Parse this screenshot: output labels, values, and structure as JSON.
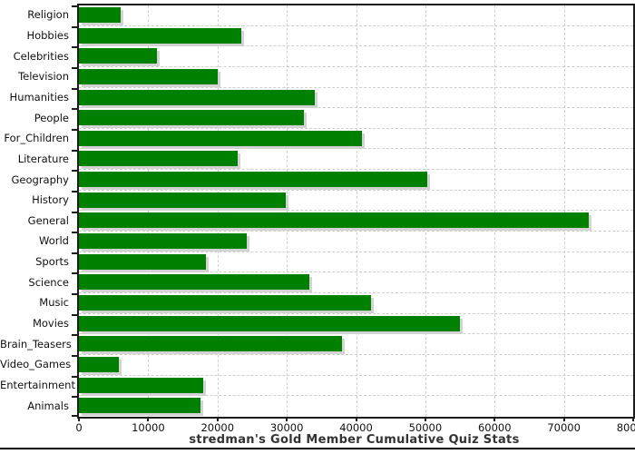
{
  "chart_data": {
    "type": "bar",
    "orientation": "horizontal",
    "title": "stredman's Gold Member Cumulative Quiz Stats",
    "categories": [
      "Religion",
      "Hobbies",
      "Celebrities",
      "Television",
      "Humanities",
      "People",
      "For_Children",
      "Literature",
      "Geography",
      "History",
      "General",
      "World",
      "Sports",
      "Science",
      "Music",
      "Movies",
      "Brain_Teasers",
      "Video_Games",
      "Entertainment",
      "Animals"
    ],
    "values": [
      6000,
      23500,
      11200,
      20000,
      34000,
      32500,
      40800,
      22900,
      50300,
      29800,
      73600,
      24200,
      18300,
      33200,
      42100,
      55000,
      38000,
      5800,
      17900,
      17500
    ],
    "xlim": [
      0,
      80000
    ],
    "x_ticks": [
      0,
      10000,
      20000,
      30000,
      40000,
      50000,
      60000,
      70000,
      80000
    ],
    "xlabel": "",
    "ylabel": "",
    "grid": "dashed",
    "legend": "none",
    "bar_color": "#008000",
    "shadow_color": "#d3d3d3",
    "grid_color": "#cfcfcf",
    "axis_color": "#1c1c1c"
  }
}
